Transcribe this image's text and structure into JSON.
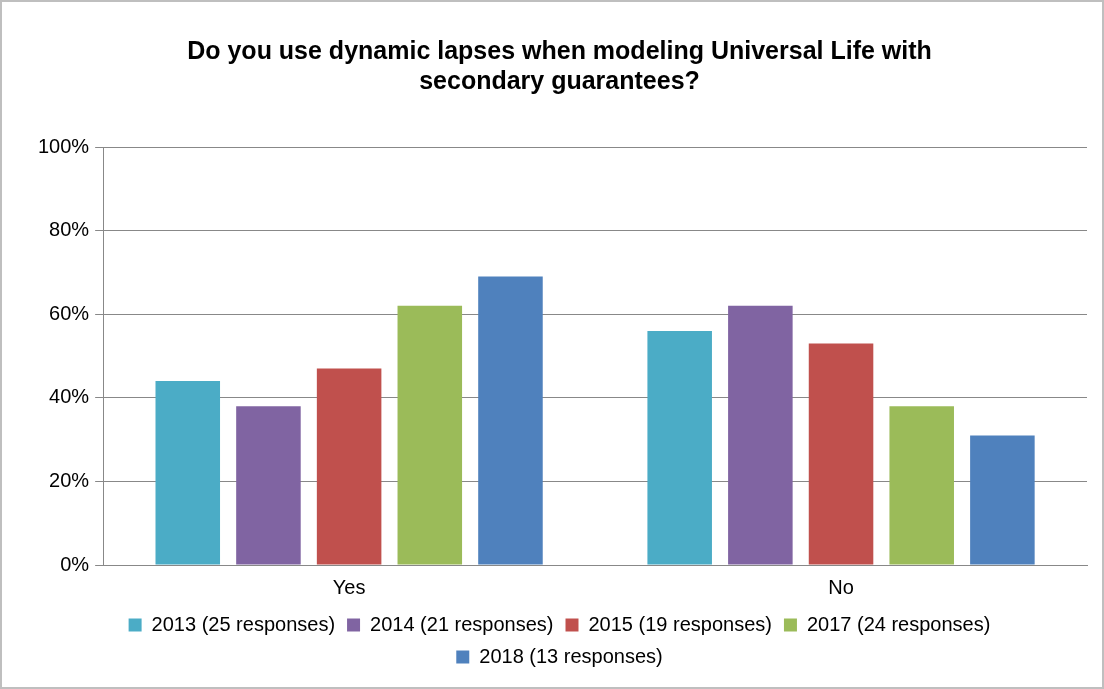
{
  "chart_data": {
    "type": "bar",
    "title": "Do you use dynamic lapses when modeling Universal Life with secondary guarantees?",
    "categories": [
      "Yes",
      "No"
    ],
    "series": [
      {
        "name": "2013 (25 responses)",
        "color": "#4bacc6",
        "values": [
          44,
          56
        ]
      },
      {
        "name": "2014 (21 responses)",
        "color": "#8064a2",
        "values": [
          38,
          62
        ]
      },
      {
        "name": "2015 (19 responses)",
        "color": "#c0504d",
        "values": [
          47,
          53
        ]
      },
      {
        "name": "2017 (24 responses)",
        "color": "#9bbb59",
        "values": [
          62,
          38
        ]
      },
      {
        "name": "2018 (13 responses)",
        "color": "#4f81bd",
        "values": [
          69,
          31
        ]
      }
    ],
    "ylim": [
      0,
      100
    ],
    "yticks": [
      {
        "value": 0,
        "label": "0%"
      },
      {
        "value": 20,
        "label": "20%"
      },
      {
        "value": 40,
        "label": "40%"
      },
      {
        "value": 60,
        "label": "60%"
      },
      {
        "value": 80,
        "label": "80%"
      },
      {
        "value": 100,
        "label": "100%"
      }
    ],
    "grid": "y",
    "legend": "bottom"
  }
}
